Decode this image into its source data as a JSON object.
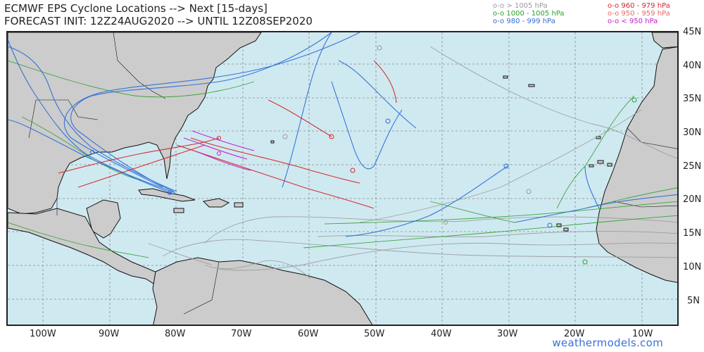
{
  "title": {
    "line1": "ECMWF EPS Cyclone Locations --> Next [15-days]",
    "line2": "FORECAST INIT: 12Z24AUG2020 --> UNTIL 12Z08SEP2020"
  },
  "legend": [
    {
      "label": "o-o > 1005 hPa",
      "color": "#9a9a9a"
    },
    {
      "label": "o-o 1000 - 1005 hPa",
      "color": "#2ca02c"
    },
    {
      "label": "o-o 980 - 999 hPa",
      "color": "#2f6fd6"
    },
    {
      "label": "o-o 960 - 979 hPa",
      "color": "#d62728"
    },
    {
      "label": "o-o 950 - 959 hPa",
      "color": "#e06a6a"
    },
    {
      "label": "o-o < 950 hPa",
      "color": "#c31ec9"
    }
  ],
  "axes": {
    "lat_labels": [
      "45N",
      "40N",
      "35N",
      "30N",
      "25N",
      "20N",
      "15N",
      "10N",
      "5N"
    ],
    "lon_labels": [
      "100W",
      "90W",
      "80W",
      "70W",
      "60W",
      "50W",
      "40W",
      "30W",
      "20W",
      "10W"
    ]
  },
  "credit": "weathermodels.com",
  "colors": {
    "ocean": "#cfe9f1",
    "land": "#cccccc",
    "gray_track": "#9a9a9a",
    "green_track": "#2ca02c",
    "blue_track": "#2f6fd6",
    "red_track": "#d62728",
    "magenta_track": "#c31ec9"
  }
}
